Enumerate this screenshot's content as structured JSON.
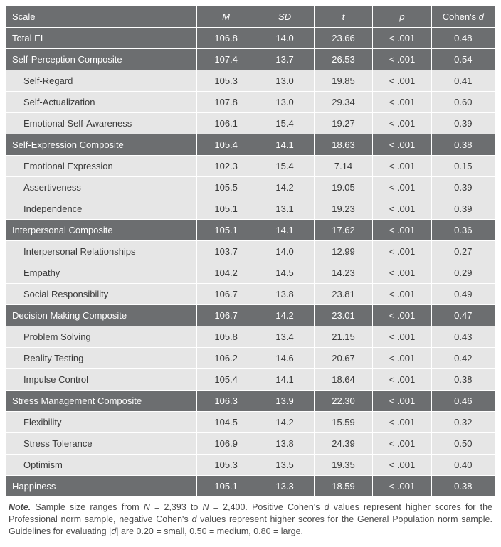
{
  "header": {
    "scale": "Scale",
    "m": "M",
    "sd": "SD",
    "t": "t",
    "p": "p",
    "d_prefix": "Cohen's ",
    "d_ital": "d"
  },
  "rows": [
    {
      "type": "group",
      "label": "Total EI",
      "m": "106.8",
      "sd": "14.0",
      "t": "23.66",
      "p": "< .001",
      "d": "0.48"
    },
    {
      "type": "group",
      "label": "Self-Perception Composite",
      "m": "107.4",
      "sd": "13.7",
      "t": "26.53",
      "p": "< .001",
      "d": "0.54"
    },
    {
      "type": "sub",
      "label": "Self-Regard",
      "m": "105.3",
      "sd": "13.0",
      "t": "19.85",
      "p": "< .001",
      "d": "0.41"
    },
    {
      "type": "sub",
      "label": "Self-Actualization",
      "m": "107.8",
      "sd": "13.0",
      "t": "29.34",
      "p": "< .001",
      "d": "0.60"
    },
    {
      "type": "sub",
      "label": "Emotional Self-Awareness",
      "m": "106.1",
      "sd": "15.4",
      "t": "19.27",
      "p": "< .001",
      "d": "0.39"
    },
    {
      "type": "group",
      "label": "Self-Expression Composite",
      "m": "105.4",
      "sd": "14.1",
      "t": "18.63",
      "p": "< .001",
      "d": "0.38"
    },
    {
      "type": "sub",
      "label": "Emotional Expression",
      "m": "102.3",
      "sd": "15.4",
      "t": "7.14",
      "p": "< .001",
      "d": "0.15"
    },
    {
      "type": "sub",
      "label": "Assertiveness",
      "m": "105.5",
      "sd": "14.2",
      "t": "19.05",
      "p": "< .001",
      "d": "0.39"
    },
    {
      "type": "sub",
      "label": "Independence",
      "m": "105.1",
      "sd": "13.1",
      "t": "19.23",
      "p": "< .001",
      "d": "0.39"
    },
    {
      "type": "group",
      "label": "Interpersonal Composite",
      "m": "105.1",
      "sd": "14.1",
      "t": "17.62",
      "p": "< .001",
      "d": "0.36"
    },
    {
      "type": "sub",
      "label": "Interpersonal Relationships",
      "m": "103.7",
      "sd": "14.0",
      "t": "12.99",
      "p": "< .001",
      "d": "0.27"
    },
    {
      "type": "sub",
      "label": "Empathy",
      "m": "104.2",
      "sd": "14.5",
      "t": "14.23",
      "p": "< .001",
      "d": "0.29"
    },
    {
      "type": "sub",
      "label": "Social Responsibility",
      "m": "106.7",
      "sd": "13.8",
      "t": "23.81",
      "p": "< .001",
      "d": "0.49"
    },
    {
      "type": "group",
      "label": "Decision Making Composite",
      "m": "106.7",
      "sd": "14.2",
      "t": "23.01",
      "p": "< .001",
      "d": "0.47"
    },
    {
      "type": "sub",
      "label": "Problem Solving",
      "m": "105.8",
      "sd": "13.4",
      "t": "21.15",
      "p": "< .001",
      "d": "0.43"
    },
    {
      "type": "sub",
      "label": "Reality Testing",
      "m": "106.2",
      "sd": "14.6",
      "t": "20.67",
      "p": "< .001",
      "d": "0.42"
    },
    {
      "type": "sub",
      "label": "Impulse Control",
      "m": "105.4",
      "sd": "14.1",
      "t": "18.64",
      "p": "< .001",
      "d": "0.38"
    },
    {
      "type": "group",
      "label": "Stress Management Composite",
      "m": "106.3",
      "sd": "13.9",
      "t": "22.30",
      "p": "< .001",
      "d": "0.46"
    },
    {
      "type": "sub",
      "label": "Flexibility",
      "m": "104.5",
      "sd": "14.2",
      "t": "15.59",
      "p": "< .001",
      "d": "0.32"
    },
    {
      "type": "sub",
      "label": "Stress Tolerance",
      "m": "106.9",
      "sd": "13.8",
      "t": "24.39",
      "p": "< .001",
      "d": "0.50"
    },
    {
      "type": "sub",
      "label": "Optimism",
      "m": "105.3",
      "sd": "13.5",
      "t": "19.35",
      "p": "< .001",
      "d": "0.40"
    },
    {
      "type": "group",
      "label": "Happiness",
      "m": "105.1",
      "sd": "13.3",
      "t": "18.59",
      "p": "< .001",
      "d": "0.38"
    }
  ],
  "note": {
    "lead": "Note.",
    "p1": " Sample size ranges from ",
    "n": "N",
    "p2": " = 2,393 to ",
    "p3": " = 2,400. Positive Cohen's ",
    "d": "d",
    "p4": " values represent higher scores for the Professional norm sample, negative Cohen's ",
    "p5": " values represent higher scores for the General Population norm sample. Guidelines for evaluating |",
    "p6": "| are 0.20 = small, 0.50 = medium, 0.80 = large."
  },
  "colors": {
    "group_bg": "#6c6e70",
    "sub_bg": "#e6e6e6",
    "border": "#ffffff",
    "text_dark": "#3a3a3a",
    "text_light": "#ffffff"
  }
}
